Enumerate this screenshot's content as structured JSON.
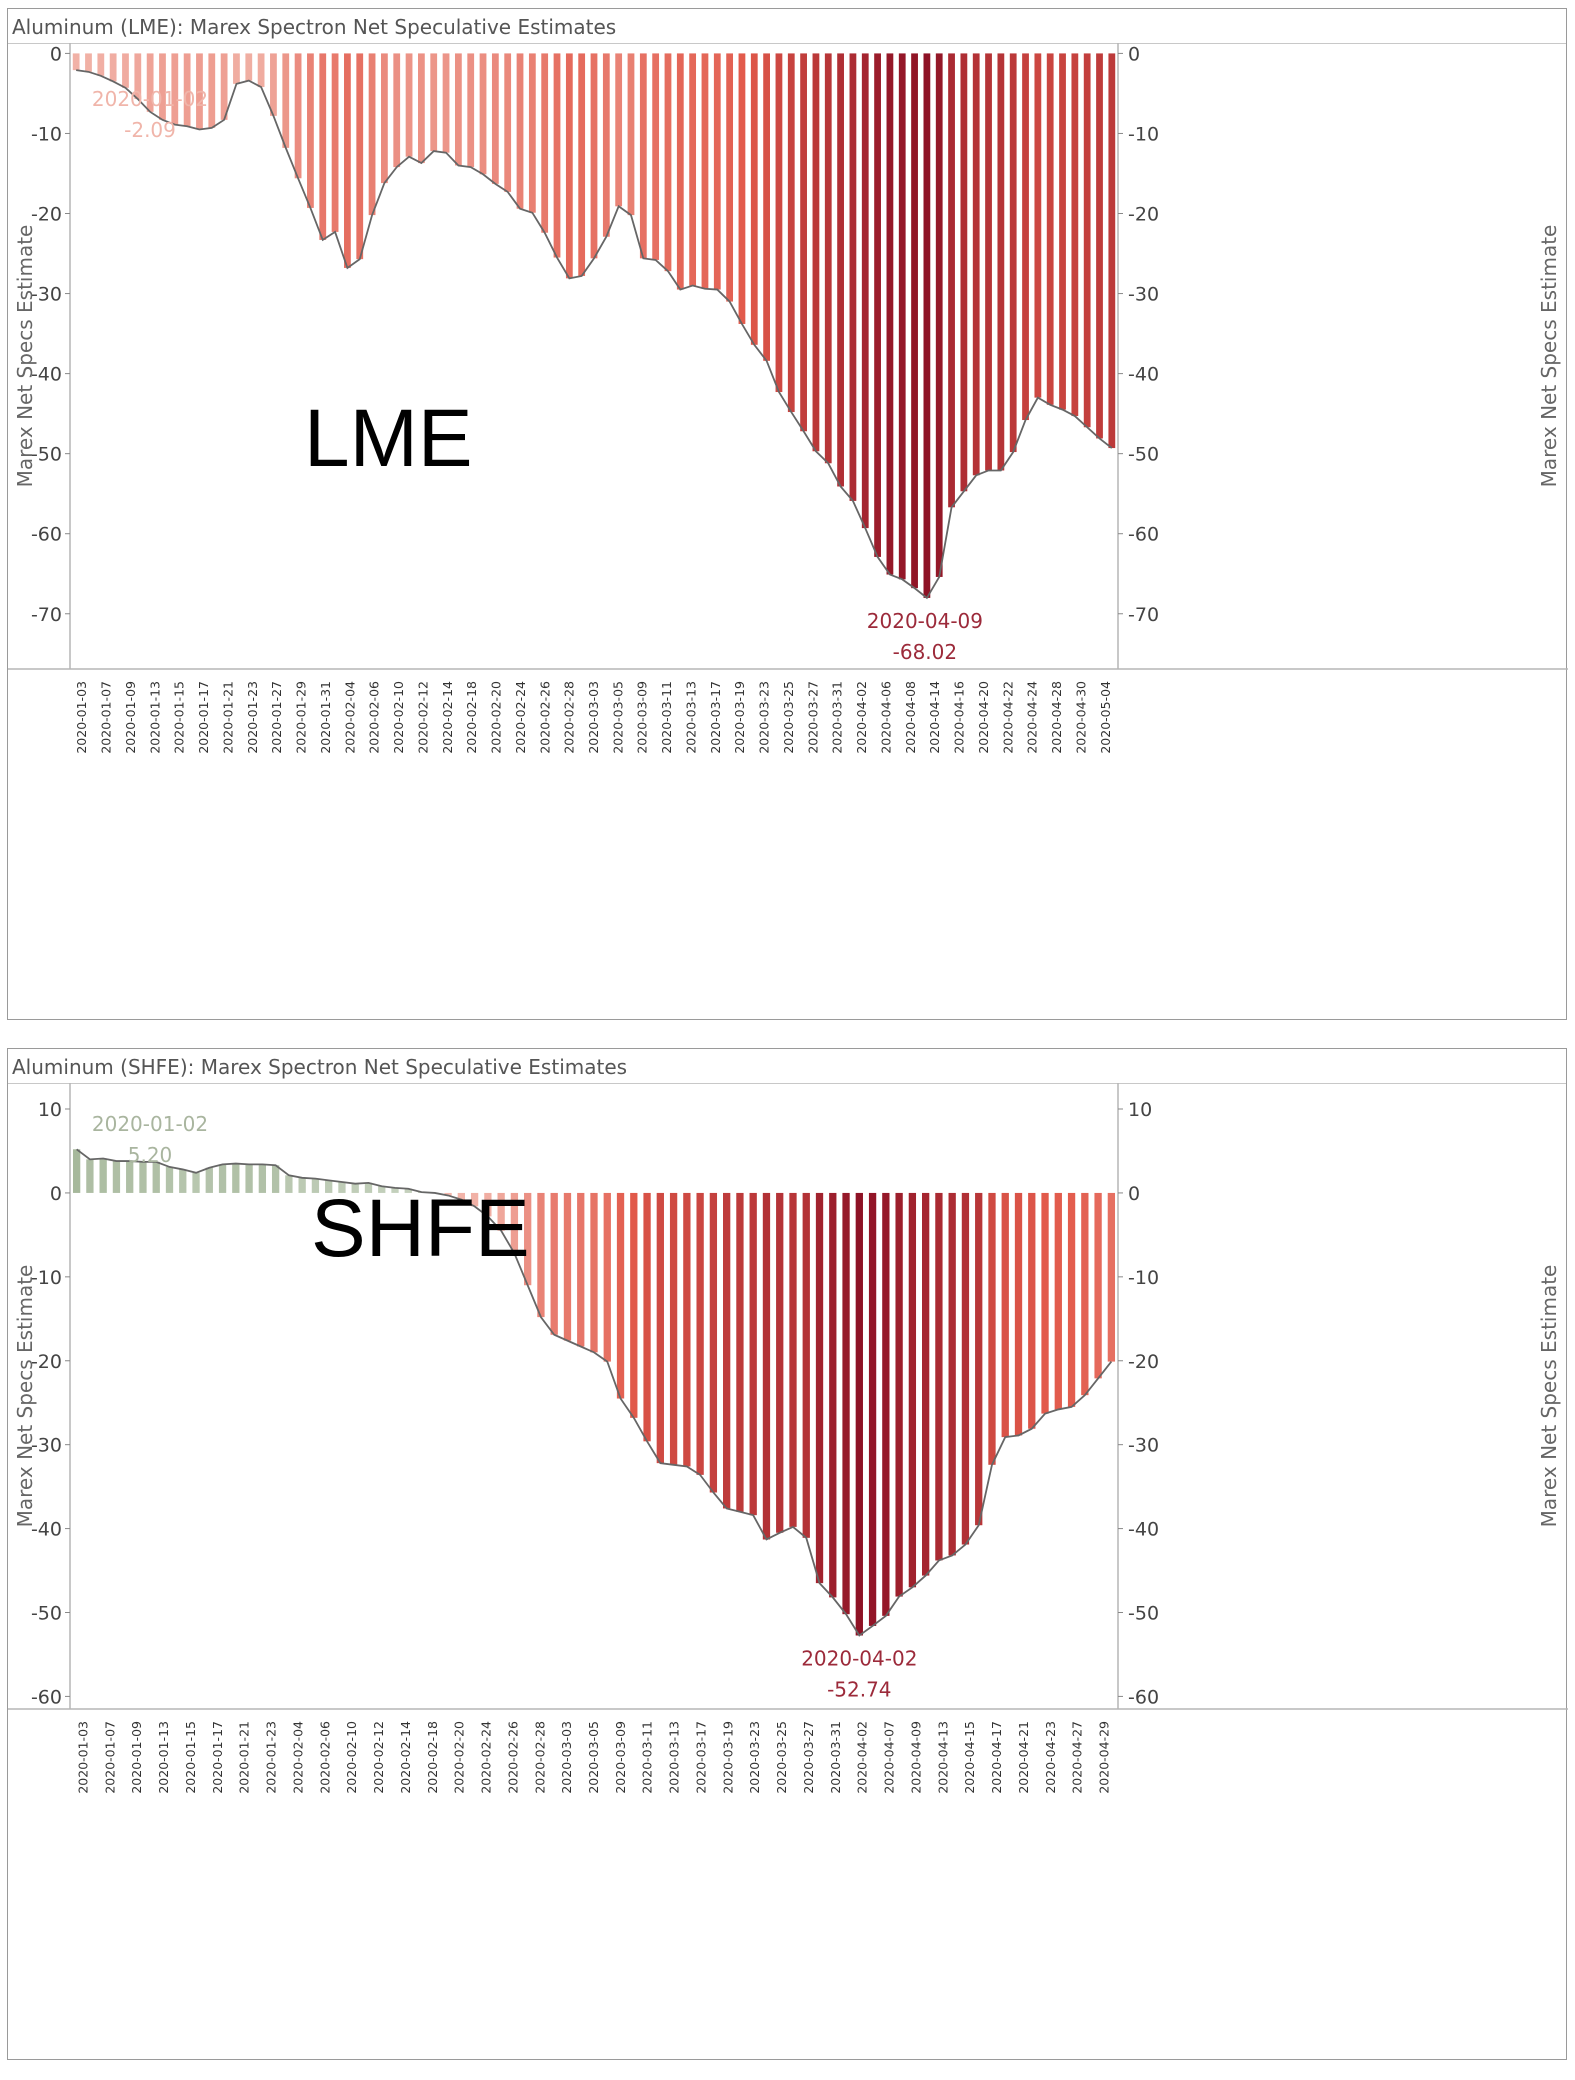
{
  "chart_data": [
    {
      "type": "bar",
      "title": "Aluminum (LME): Marex Spectron Net Speculative Estimates",
      "overlay_label": "LME",
      "ylabel": "Marex Net Specs Estimate",
      "ylim": [
        -76.9,
        1.3
      ],
      "yticks": [
        0,
        -10,
        -20,
        -30,
        -40,
        -50,
        -60,
        -70
      ],
      "grid": false,
      "x_tick_labels": [
        "2020-01-03",
        "2020-01-07",
        "2020-01-09",
        "2020-01-13",
        "2020-01-15",
        "2020-01-17",
        "2020-01-21",
        "2020-01-23",
        "2020-01-27",
        "2020-01-29",
        "2020-01-31",
        "2020-02-04",
        "2020-02-06",
        "2020-02-10",
        "2020-02-12",
        "2020-02-14",
        "2020-02-18",
        "2020-02-20",
        "2020-02-24",
        "2020-02-26",
        "2020-02-28",
        "2020-03-03",
        "2020-03-05",
        "2020-03-09",
        "2020-03-11",
        "2020-03-13",
        "2020-03-17",
        "2020-03-19",
        "2020-03-23",
        "2020-03-25",
        "2020-03-27",
        "2020-03-31",
        "2020-04-02",
        "2020-04-06",
        "2020-04-08",
        "2020-04-14",
        "2020-04-16",
        "2020-04-20",
        "2020-04-22",
        "2020-04-24",
        "2020-04-28",
        "2020-04-30",
        "2020-05-04"
      ],
      "values": [
        -2.09,
        -2.3,
        -2.8,
        -3.5,
        -4.3,
        -5.7,
        -7.3,
        -8.3,
        -8.9,
        -9.1,
        -9.5,
        -9.3,
        -8.3,
        -3.8,
        -3.4,
        -4.2,
        -7.8,
        -11.8,
        -15.6,
        -19.3,
        -23.3,
        -22.3,
        -26.8,
        -25.7,
        -20.2,
        -16.2,
        -14.2,
        -12.9,
        -13.7,
        -12.2,
        -12.4,
        -14.0,
        -14.2,
        -15.1,
        -16.3,
        -17.3,
        -19.4,
        -19.9,
        -22.4,
        -25.5,
        -28.1,
        -27.8,
        -25.6,
        -22.9,
        -19.1,
        -20.2,
        -25.6,
        -25.8,
        -27.2,
        -29.5,
        -29.0,
        -29.4,
        -29.5,
        -31.0,
        -33.8,
        -36.4,
        -38.4,
        -42.3,
        -44.8,
        -47.2,
        -49.7,
        -51.2,
        -54.1,
        -55.9,
        -59.3,
        -62.9,
        -65.1,
        -65.7,
        -66.8,
        -68.02,
        -65.4,
        -56.7,
        -54.7,
        -52.7,
        -52.1,
        -52.1,
        -49.8,
        -45.8,
        -43.0,
        -43.9,
        -44.5,
        -45.3,
        -46.7,
        -48.1,
        -49.3
      ],
      "annotations": [
        {
          "date": "2020-01-02",
          "value": "-2.09"
        },
        {
          "date": "2020-04-09",
          "value": "-68.02"
        }
      ]
    },
    {
      "type": "bar",
      "title": "Aluminum (SHFE): Marex Spectron Net Speculative Estimates",
      "overlay_label": "SHFE",
      "ylabel": "Marex Net Specs Estimate",
      "ylim": [
        -61.5,
        13.1
      ],
      "yticks": [
        10,
        0,
        -10,
        -20,
        -30,
        -40,
        -50,
        -60
      ],
      "grid": false,
      "x_tick_labels": [
        "2020-01-03",
        "2020-01-07",
        "2020-01-09",
        "2020-01-13",
        "2020-01-15",
        "2020-01-17",
        "2020-01-21",
        "2020-01-23",
        "2020-02-04",
        "2020-02-06",
        "2020-02-10",
        "2020-02-12",
        "2020-02-14",
        "2020-02-18",
        "2020-02-20",
        "2020-02-24",
        "2020-02-26",
        "2020-02-28",
        "2020-03-03",
        "2020-03-05",
        "2020-03-09",
        "2020-03-11",
        "2020-03-13",
        "2020-03-17",
        "2020-03-19",
        "2020-03-23",
        "2020-03-25",
        "2020-03-27",
        "2020-03-31",
        "2020-04-02",
        "2020-04-07",
        "2020-04-09",
        "2020-04-13",
        "2020-04-15",
        "2020-04-17",
        "2020-04-21",
        "2020-04-23",
        "2020-04-27",
        "2020-04-29"
      ],
      "values": [
        5.2,
        4.0,
        4.1,
        3.8,
        3.8,
        3.7,
        3.7,
        3.1,
        2.8,
        2.4,
        3.0,
        3.4,
        3.5,
        3.4,
        3.4,
        3.3,
        2.1,
        1.8,
        1.7,
        1.5,
        1.3,
        1.1,
        1.2,
        0.8,
        0.6,
        0.5,
        0.1,
        0.0,
        -0.3,
        -0.8,
        -1.6,
        -2.8,
        -4.5,
        -7.2,
        -11.0,
        -14.8,
        -16.9,
        -17.6,
        -18.3,
        -19.0,
        -20.1,
        -24.5,
        -26.8,
        -29.6,
        -32.2,
        -32.4,
        -32.6,
        -33.6,
        -35.7,
        -37.6,
        -38.0,
        -38.4,
        -41.3,
        -40.5,
        -39.8,
        -41.1,
        -46.5,
        -48.2,
        -50.2,
        -52.74,
        -51.6,
        -50.4,
        -48.1,
        -47.0,
        -45.6,
        -43.8,
        -43.2,
        -41.9,
        -39.6,
        -32.4,
        -29.1,
        -28.9,
        -28.1,
        -26.3,
        -25.8,
        -25.5,
        -24.1,
        -22.1,
        -20.1
      ],
      "annotations": [
        {
          "date": "2020-01-02",
          "value": "5.20"
        },
        {
          "date": "2020-04-02",
          "value": "-52.74"
        }
      ]
    }
  ],
  "colors": {
    "light_red": "#f2b7ac",
    "mid_red": "#e25a4b",
    "dark_red": "#8e1225",
    "light_green": "#c7d3c0",
    "mid_green": "#a6b89b",
    "line": "#666666",
    "ann_light_red": "#f0b5aa",
    "ann_dark_red": "#9c2a3a",
    "ann_green": "#a9b59f"
  }
}
